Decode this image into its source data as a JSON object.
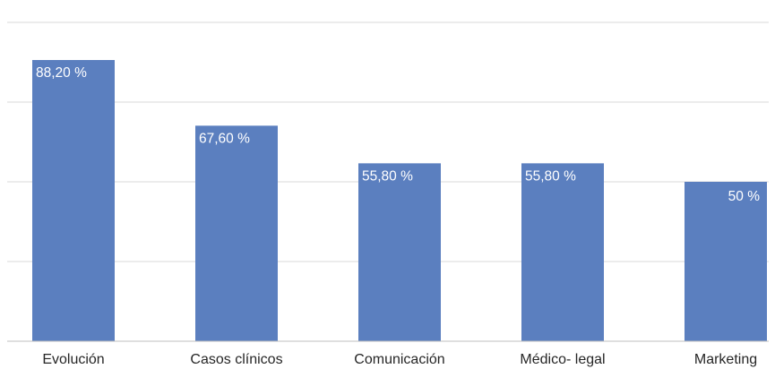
{
  "chart_data": {
    "type": "bar",
    "title": "",
    "xlabel": "",
    "ylabel": "",
    "categories": [
      "Evolución",
      "Casos clínicos",
      "Comunicación",
      "Médico- legal",
      "Marketing"
    ],
    "values": [
      88.2,
      67.6,
      55.8,
      55.8,
      50
    ],
    "data_labels": [
      "88,20 %",
      "67,60 %",
      "55,80 %",
      "55,80 %",
      "50 %"
    ],
    "ylim": [
      0,
      100
    ],
    "gridlines": [
      0,
      25,
      50,
      75,
      100
    ],
    "grid": true,
    "legend": "none",
    "colors": {
      "bar": "#5b7fbf",
      "grid": "#d9d9d9",
      "axis": "#bfbfbf",
      "bar_label": "#ffffff",
      "tick_label": "#262626"
    }
  }
}
